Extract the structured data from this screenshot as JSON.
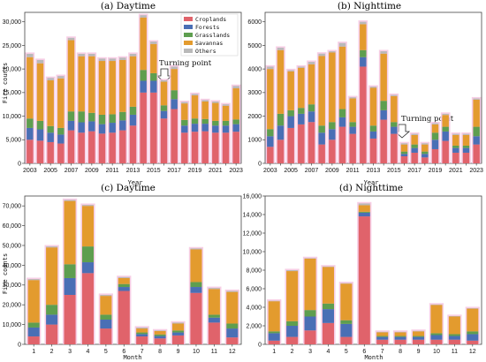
{
  "chart_data": [
    {
      "type": "bar",
      "stacked": true,
      "title": "(a) Daytime",
      "xlabel": "Year",
      "ylabel": "Fire counts",
      "ylim": [
        0,
        32000
      ],
      "yticks": [
        "0",
        "5,000",
        "10,000",
        "15,000",
        "20,000",
        "25,000",
        "30,000"
      ],
      "ytick_values": [
        0,
        5000,
        10000,
        15000,
        20000,
        25000,
        30000
      ],
      "categories": [
        "2003",
        "2004",
        "2005",
        "2006",
        "2007",
        "2008",
        "2009",
        "2010",
        "2011",
        "2012",
        "2013",
        "2014",
        "2015",
        "2016",
        "2017",
        "2018",
        "2019",
        "2020",
        "2021",
        "2022",
        "2023"
      ],
      "xtick_labels": [
        "2003",
        "2005",
        "2007",
        "2009",
        "2011",
        "2013",
        "2015",
        "2017",
        "2019",
        "2021",
        "2023"
      ],
      "series": [
        {
          "name": "Croplands",
          "values": [
            5000,
            4800,
            4500,
            4200,
            7000,
            6500,
            6800,
            6300,
            6500,
            7000,
            8000,
            15000,
            15000,
            9500,
            11500,
            6500,
            6700,
            6800,
            6500,
            6500,
            6700
          ]
        },
        {
          "name": "Forests",
          "values": [
            2500,
            2400,
            2000,
            1900,
            2000,
            2200,
            2100,
            2000,
            2100,
            2100,
            2300,
            2500,
            2500,
            1600,
            2100,
            1500,
            1700,
            1600,
            1500,
            1500,
            1600
          ]
        },
        {
          "name": "Grasslands",
          "values": [
            2000,
            1800,
            1400,
            1400,
            2000,
            2300,
            1800,
            2000,
            1800,
            1800,
            1700,
            2300,
            1600,
            1200,
            1900,
            1200,
            1100,
            1000,
            1000,
            1000,
            1000
          ]
        },
        {
          "name": "Savannas",
          "values": [
            13000,
            12200,
            9700,
            10500,
            15100,
            11700,
            12000,
            11400,
            11300,
            11000,
            10700,
            11100,
            6200,
            5000,
            4500,
            3500,
            4900,
            3700,
            3800,
            3200,
            6600
          ]
        },
        {
          "name": "Others",
          "values": [
            700,
            700,
            500,
            500,
            500,
            500,
            500,
            500,
            500,
            500,
            500,
            500,
            500,
            300,
            500,
            300,
            300,
            300,
            300,
            300,
            500
          ]
        }
      ],
      "legend_position": "top-right",
      "annotation": {
        "text": "Turning point",
        "category": "2016"
      }
    },
    {
      "type": "bar",
      "stacked": true,
      "title": "(b) Nighttime",
      "xlabel": "Year",
      "ylabel": "",
      "ylim": [
        0,
        6400
      ],
      "yticks": [
        "0",
        "1000",
        "2000",
        "3000",
        "4000",
        "5000",
        "6000"
      ],
      "ytick_values": [
        0,
        1000,
        2000,
        3000,
        4000,
        5000,
        6000
      ],
      "categories": [
        "2003",
        "2004",
        "2005",
        "2006",
        "2007",
        "2008",
        "2009",
        "2010",
        "2011",
        "2012",
        "2013",
        "2014",
        "2015",
        "2016",
        "2017",
        "2018",
        "2019",
        "2020",
        "2021",
        "2022",
        "2023"
      ],
      "xtick_labels": [
        "2003",
        "2005",
        "2007",
        "2009",
        "2011",
        "2013",
        "2015",
        "2017",
        "2019",
        "2021",
        "2023"
      ],
      "series": [
        {
          "name": "Croplands",
          "values": [
            700,
            1000,
            1500,
            1650,
            1750,
            800,
            1000,
            1550,
            1250,
            4100,
            1050,
            1850,
            1250,
            300,
            450,
            250,
            600,
            950,
            450,
            450,
            800
          ]
        },
        {
          "name": "Forests",
          "values": [
            450,
            600,
            500,
            450,
            450,
            500,
            450,
            400,
            300,
            400,
            300,
            400,
            300,
            100,
            200,
            150,
            400,
            400,
            200,
            200,
            350
          ]
        },
        {
          "name": "Grasslands",
          "values": [
            300,
            500,
            250,
            250,
            300,
            300,
            300,
            350,
            200,
            300,
            250,
            400,
            200,
            100,
            150,
            100,
            300,
            200,
            100,
            100,
            400
          ]
        },
        {
          "name": "Savannas",
          "values": [
            2550,
            2700,
            1650,
            1700,
            1700,
            2950,
            2950,
            2650,
            1000,
            1100,
            1600,
            2000,
            1100,
            300,
            400,
            300,
            350,
            500,
            450,
            450,
            1150
          ]
        },
        {
          "name": "Others",
          "values": [
            100,
            100,
            50,
            50,
            100,
            100,
            50,
            150,
            50,
            100,
            50,
            100,
            50,
            50,
            50,
            50,
            50,
            50,
            50,
            50,
            50
          ]
        }
      ],
      "annotation": {
        "text": "Turning point",
        "category": "2016"
      }
    },
    {
      "type": "bar",
      "stacked": true,
      "title": "(c) Daytime",
      "xlabel": "Month",
      "ylabel": "Fire counts",
      "ylim": [
        0,
        75000
      ],
      "yticks": [
        "0",
        "10,000",
        "20,000",
        "30,000",
        "40,000",
        "50,000",
        "60,000",
        "70,000"
      ],
      "ytick_values": [
        0,
        10000,
        20000,
        30000,
        40000,
        50000,
        60000,
        70000
      ],
      "categories": [
        "1",
        "2",
        "3",
        "4",
        "5",
        "6",
        "7",
        "8",
        "9",
        "10",
        "11",
        "12"
      ],
      "xtick_labels": [
        "1",
        "2",
        "3",
        "4",
        "5",
        "6",
        "7",
        "8",
        "9",
        "10",
        "11",
        "12"
      ],
      "series": [
        {
          "name": "Croplands",
          "values": [
            4000,
            10000,
            25000,
            36000,
            8000,
            27000,
            4000,
            3000,
            4500,
            26000,
            11000,
            3500
          ]
        },
        {
          "name": "Forests",
          "values": [
            4500,
            5000,
            8500,
            5500,
            4500,
            2000,
            1200,
            1200,
            1500,
            3000,
            2500,
            4500
          ]
        },
        {
          "name": "Grasslands",
          "values": [
            2500,
            5000,
            7000,
            8000,
            2500,
            1500,
            800,
            800,
            1000,
            2500,
            1500,
            2500
          ]
        },
        {
          "name": "Savannas",
          "values": [
            21500,
            29000,
            32000,
            20500,
            9500,
            3000,
            2000,
            1700,
            3500,
            16500,
            13000,
            16000
          ]
        },
        {
          "name": "Others",
          "values": [
            500,
            500,
            500,
            500,
            500,
            500,
            500,
            300,
            500,
            500,
            500,
            500
          ]
        }
      ]
    },
    {
      "type": "bar",
      "stacked": true,
      "title": "(d) Nighttime",
      "xlabel": "Month",
      "ylabel": "",
      "ylim": [
        0,
        16000
      ],
      "yticks": [
        "0",
        "2,000",
        "4,000",
        "6,000",
        "8,000",
        "10,000",
        "12,000",
        "14,000",
        "16,000"
      ],
      "ytick_values": [
        0,
        2000,
        4000,
        6000,
        8000,
        10000,
        12000,
        14000,
        16000
      ],
      "categories": [
        "1",
        "2",
        "3",
        "4",
        "5",
        "6",
        "7",
        "8",
        "9",
        "10",
        "11",
        "12"
      ],
      "xtick_labels": [
        "1",
        "2",
        "3",
        "4",
        "5",
        "6",
        "7",
        "8",
        "9",
        "10",
        "11",
        "12"
      ],
      "series": [
        {
          "name": "Croplands",
          "values": [
            400,
            800,
            1500,
            2300,
            800,
            13800,
            500,
            500,
            500,
            500,
            500,
            400
          ]
        },
        {
          "name": "Forests",
          "values": [
            800,
            1200,
            1500,
            1500,
            1400,
            400,
            300,
            300,
            300,
            500,
            400,
            700
          ]
        },
        {
          "name": "Grasslands",
          "values": [
            200,
            500,
            700,
            600,
            400,
            100,
            100,
            100,
            100,
            200,
            200,
            300
          ]
        },
        {
          "name": "Savannas",
          "values": [
            3250,
            5400,
            5550,
            3950,
            3950,
            700,
            400,
            400,
            500,
            3050,
            1900,
            2450
          ]
        },
        {
          "name": "Others",
          "values": [
            50,
            100,
            50,
            50,
            50,
            200,
            50,
            50,
            50,
            50,
            50,
            50
          ]
        }
      ]
    }
  ],
  "legend": {
    "items": [
      "Croplands",
      "Forests",
      "Grasslands",
      "Savannas",
      "Others"
    ]
  },
  "colors": {
    "Croplands": "#e0636b",
    "Forests": "#4a6fb5",
    "Grasslands": "#5e9e4f",
    "Savannas": "#e39b2e",
    "Others": "#b9b9b9",
    "halo": "#f6c6e0"
  }
}
